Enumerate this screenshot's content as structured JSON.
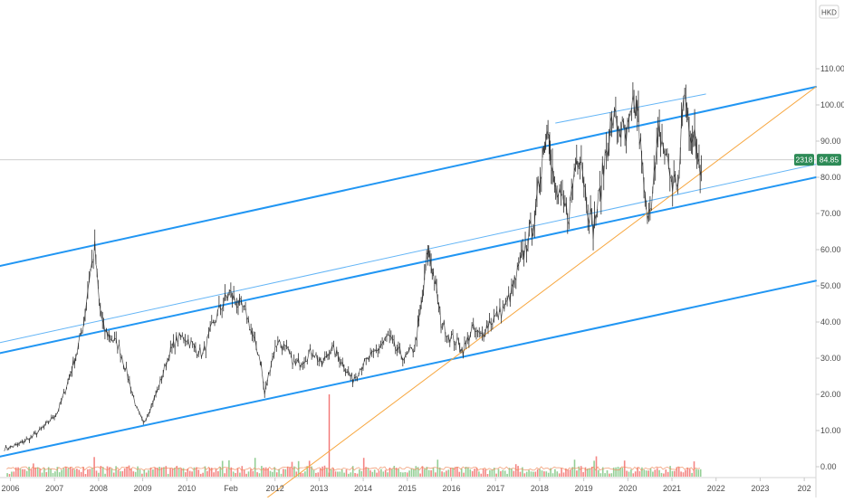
{
  "header": {
    "currency": "HKD"
  },
  "price_tag": {
    "symbol_tag": "2318",
    "price_label": "84.85"
  },
  "colors": {
    "channel": "#2196f3",
    "channel_thin": "#64b5f6",
    "trendline": "#f7a740",
    "candle": "#2e2e2e",
    "tag_bg": "#2e8b57",
    "vol_up": "#66bb6a",
    "vol_down": "#ef5350",
    "vol_ma": "#ef8a5a",
    "axis_text": "#4a4a4a"
  },
  "chart_data": {
    "type": "line",
    "title": "",
    "xlabel": "",
    "ylabel": "",
    "currency": "HKD",
    "x_tick_labels": [
      "2006",
      "2007",
      "2008",
      "2009",
      "2010",
      "Feb",
      "2012",
      "2013",
      "2014",
      "2015",
      "2016",
      "2017",
      "2018",
      "2019",
      "2020",
      "2021",
      "2022",
      "2023",
      "202"
    ],
    "y_tick_labels": [
      "110.00",
      "100.00",
      "90.00",
      "80.00",
      "70.00",
      "60.00",
      "50.00",
      "40.00",
      "30.00",
      "20.00",
      "10.00",
      "0.00",
      "-10.00"
    ],
    "ylim": [
      -12,
      115
    ],
    "xlim": [
      2005.6,
      2024.1
    ],
    "last_price": 84.85,
    "series": [
      {
        "kind": "price",
        "x": [
          2005.7,
          2006.0,
          2006.3,
          2006.6,
          2006.9,
          2007.05,
          2007.2,
          2007.35,
          2007.5,
          2007.62,
          2007.75,
          2007.85,
          2007.95,
          2008.1,
          2008.3,
          2008.5,
          2008.7,
          2008.85,
          2009.0,
          2009.2,
          2009.4,
          2009.6,
          2009.8,
          2010.0,
          2010.2,
          2010.4,
          2010.6,
          2010.8,
          2011.0,
          2011.2,
          2011.35,
          2011.5,
          2011.6,
          2011.75,
          2011.9,
          2012.1,
          2012.3,
          2012.5,
          2012.7,
          2012.9,
          2013.1,
          2013.3,
          2013.5,
          2013.6,
          2013.8,
          2014.0,
          2014.2,
          2014.4,
          2014.6,
          2014.8,
          2015.0,
          2015.1,
          2015.2,
          2015.3,
          2015.4,
          2015.5,
          2015.6,
          2015.8,
          2016.0,
          2016.1,
          2016.3,
          2016.5,
          2016.7,
          2016.9,
          2017.1,
          2017.3,
          2017.45,
          2017.6,
          2017.75,
          2017.85,
          2017.95,
          2018.05,
          2018.1,
          2018.2,
          2018.35,
          2018.5,
          2018.65,
          2018.75,
          2018.9,
          2019.05,
          2019.2,
          2019.35,
          2019.5,
          2019.65,
          2019.8,
          2019.95,
          2020.05,
          2020.15,
          2020.25,
          2020.4,
          2020.55,
          2020.7,
          2020.85,
          2021.0,
          2021.1,
          2021.2,
          2021.3,
          2021.4,
          2021.5
        ],
        "y": [
          5,
          6,
          8,
          11,
          15,
          20,
          26,
          32,
          40,
          52,
          60,
          45,
          38,
          36,
          33,
          25,
          16,
          12,
          16,
          22,
          30,
          35,
          36,
          33,
          31,
          38,
          44,
          48,
          45,
          42,
          35,
          30,
          20,
          29,
          35,
          32,
          28,
          30,
          32,
          28,
          33,
          30,
          26,
          24,
          28,
          30,
          33,
          36,
          32,
          30,
          33,
          40,
          48,
          60,
          55,
          48,
          40,
          36,
          34,
          32,
          38,
          36,
          40,
          42,
          45,
          52,
          58,
          64,
          70,
          82,
          90,
          96,
          82,
          76,
          72,
          70,
          84,
          88,
          74,
          66,
          75,
          88,
          96,
          94,
          90,
          98,
          100,
          84,
          70,
          76,
          92,
          86,
          78,
          80,
          104,
          96,
          92,
          88,
          82
        ]
      },
      {
        "kind": "volume",
        "spike_x": 2013.05,
        "spike_value": 20,
        "typical_value": -10
      }
    ],
    "lines": [
      {
        "name": "",
        "style": "channel",
        "x": [
          2005.6,
          2024.1
        ],
        "y": [
          55.5,
          105
        ]
      },
      {
        "name": "",
        "style": "channel",
        "x": [
          2005.6,
          2024.1
        ],
        "y": [
          31.4,
          80.0
        ]
      },
      {
        "name": "",
        "style": "channel",
        "x": [
          2005.6,
          2024.1
        ],
        "y": [
          2.8,
          51.4
        ]
      },
      {
        "name": "",
        "style": "channel_thin",
        "x": [
          2005.6,
          2024.1
        ],
        "y": [
          34.3,
          83.6
        ]
      },
      {
        "name": "",
        "style": "channel_thin",
        "x": [
          2018.2,
          2021.6
        ],
        "y": [
          95.0,
          103.0
        ]
      },
      {
        "name": "",
        "style": "trendline",
        "x": [
          2011.5,
          2024.1
        ],
        "y": [
          -10.0,
          105.0
        ]
      }
    ]
  }
}
